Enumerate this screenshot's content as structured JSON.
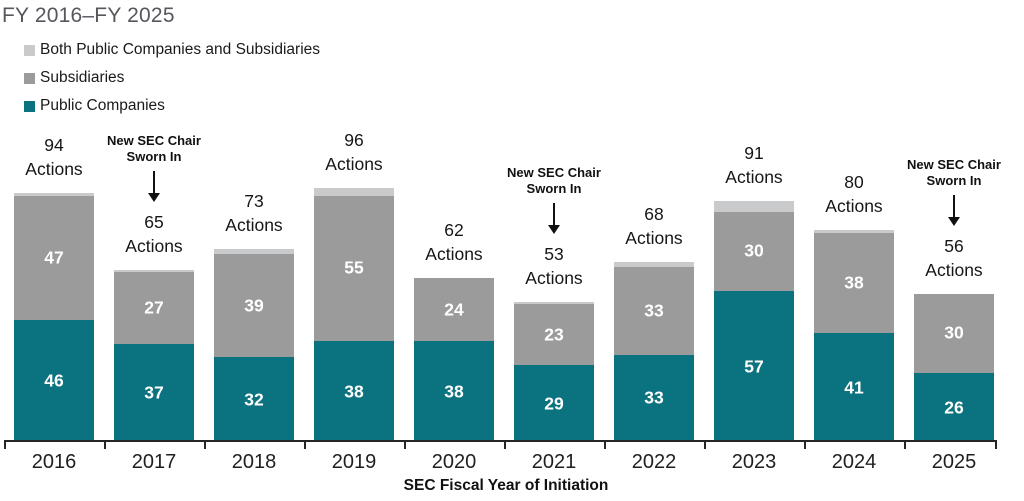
{
  "title": "FY 2016–FY 2025",
  "legend": {
    "items": [
      {
        "label": "Both Public Companies and Subsidiaries",
        "color": "#c9cacb"
      },
      {
        "label": "Subsidiaries",
        "color": "#9b9b9b"
      },
      {
        "label": "Public Companies",
        "color": "#0b737f"
      }
    ]
  },
  "chart_data": {
    "type": "bar",
    "stacked": true,
    "title": "FY 2016–FY 2025",
    "categories": [
      "2016",
      "2017",
      "2018",
      "2019",
      "2020",
      "2021",
      "2022",
      "2023",
      "2024",
      "2025"
    ],
    "series": [
      {
        "name": "Public Companies",
        "color": "#0b737f",
        "values": [
          46,
          37,
          32,
          38,
          38,
          29,
          33,
          57,
          41,
          26
        ]
      },
      {
        "name": "Subsidiaries",
        "color": "#9b9b9b",
        "values": [
          47,
          27,
          39,
          55,
          24,
          23,
          33,
          30,
          38,
          30
        ]
      },
      {
        "name": "Both Public Companies and Subsidiaries",
        "color": "#c9cacb",
        "values": [
          1,
          1,
          2,
          3,
          0,
          1,
          2,
          4,
          1,
          0
        ]
      }
    ],
    "totals": [
      94,
      65,
      73,
      96,
      62,
      53,
      68,
      91,
      80,
      56
    ],
    "total_label_suffix": "Actions",
    "annotations": [
      {
        "category": "2017",
        "lines": [
          "New SEC Chair",
          "Sworn In"
        ]
      },
      {
        "category": "2021",
        "lines": [
          "New SEC Chair",
          "Sworn In"
        ]
      },
      {
        "category": "2025",
        "lines": [
          "New SEC Chair",
          "Sworn In"
        ]
      }
    ],
    "xlabel": "SEC Fiscal Year of Initiation",
    "ylim": [
      0,
      100
    ],
    "grid": false,
    "legend_position": "top-left",
    "value_label_color": "#ffffff"
  },
  "colors": {
    "title_text": "#55575c",
    "axis": "#262626",
    "body_text": "#1a1a1a"
  }
}
